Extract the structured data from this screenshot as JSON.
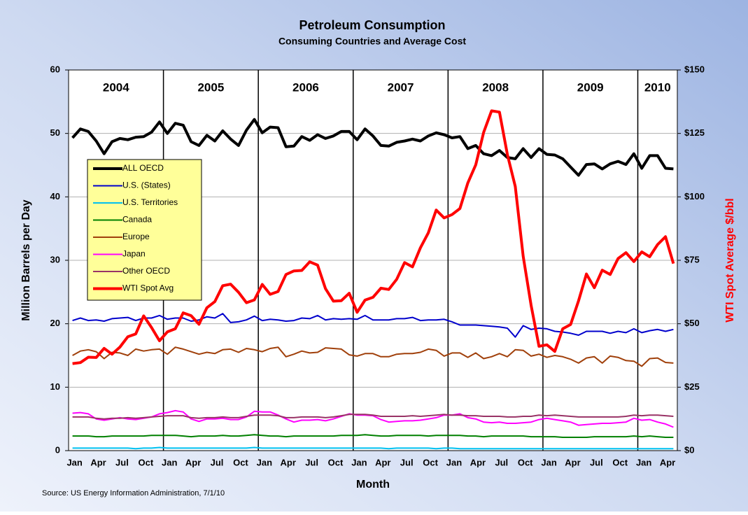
{
  "chart_data": {
    "type": "line",
    "title": "Petroleum Consumption",
    "subtitle": "Consuming Countries and Average Cost",
    "xlabel": "Month",
    "ylabel": "Million Barrels per Day",
    "y2label": "WTI Spot Average $/bbl",
    "source": "Source:  US Energy Information Administration, 7/1/10",
    "year_labels": [
      "2004",
      "2005",
      "2006",
      "2007",
      "2008",
      "2009",
      "2010"
    ],
    "categories": [
      "Jan",
      null,
      null,
      "Apr",
      null,
      null,
      "Jul",
      null,
      null,
      "Oct",
      null,
      null,
      "Jan",
      null,
      null,
      "Apr",
      null,
      null,
      "Jul",
      null,
      null,
      "Oct",
      null,
      null,
      "Jan",
      null,
      null,
      "Apr",
      null,
      null,
      "Jul",
      null,
      null,
      "Oct",
      null,
      null,
      "Jan",
      null,
      null,
      "Apr",
      null,
      null,
      "Jul",
      null,
      null,
      "Oct",
      null,
      null,
      "Jan",
      null,
      null,
      "Apr",
      null,
      null,
      "Jul",
      null,
      null,
      "Oct",
      null,
      null,
      "Jan",
      null,
      null,
      "Apr",
      null,
      null,
      "Jul",
      null,
      null,
      "Oct",
      null,
      null,
      "Jan",
      null,
      null,
      "Apr",
      null
    ],
    "ylim": [
      0,
      60
    ],
    "yticks": [
      0,
      10,
      20,
      30,
      40,
      50,
      60
    ],
    "y2lim": [
      0,
      150
    ],
    "y2ticks": [
      {
        "value": 0,
        "label": "$0"
      },
      {
        "value": 25,
        "label": "$25"
      },
      {
        "value": 50,
        "label": "$50"
      },
      {
        "value": 75,
        "label": "$75"
      },
      {
        "value": 100,
        "label": "$100"
      },
      {
        "value": 125,
        "label": "$125"
      },
      {
        "value": 150,
        "label": "$150"
      }
    ],
    "grid": true,
    "legend": "left",
    "series": [
      {
        "name": "ALL OECD",
        "color": "#000000",
        "values": [
          49.3,
          50.7,
          50.3,
          48.8,
          46.8,
          48.7,
          49.2,
          49.0,
          49.4,
          49.5,
          50.2,
          51.8,
          50.0,
          51.6,
          51.3,
          48.7,
          48.1,
          49.7,
          48.8,
          50.4,
          49.1,
          48.1,
          50.5,
          52.2,
          50.1,
          51.0,
          50.9,
          47.9,
          48.0,
          49.5,
          48.9,
          49.8,
          49.2,
          49.6,
          50.3,
          50.3,
          49.0,
          50.7,
          49.6,
          48.1,
          48.0,
          48.6,
          48.8,
          49.1,
          48.8,
          49.6,
          50.1,
          49.8,
          49.3,
          49.5,
          47.6,
          48.1,
          46.8,
          46.5,
          47.3,
          46.2,
          46.0,
          47.6,
          46.2,
          47.6,
          46.7,
          46.6,
          46.0,
          44.7,
          43.4,
          45.1,
          45.2,
          44.4,
          45.2,
          45.6,
          45.1,
          46.8,
          44.5,
          46.5,
          46.5,
          44.5,
          44.4
        ]
      },
      {
        "name": "U.S. (States)",
        "color": "#0000cc",
        "values": [
          20.5,
          20.9,
          20.5,
          20.6,
          20.4,
          20.8,
          20.9,
          21.0,
          20.5,
          20.9,
          20.9,
          21.3,
          20.7,
          20.9,
          20.9,
          20.4,
          20.6,
          21.1,
          20.9,
          21.6,
          20.2,
          20.3,
          20.6,
          21.2,
          20.5,
          20.7,
          20.6,
          20.4,
          20.5,
          20.9,
          20.8,
          21.3,
          20.6,
          20.8,
          20.7,
          20.8,
          20.7,
          21.3,
          20.6,
          20.6,
          20.6,
          20.8,
          20.8,
          21.0,
          20.5,
          20.6,
          20.6,
          20.7,
          20.3,
          19.8,
          19.8,
          19.8,
          19.7,
          19.6,
          19.5,
          19.3,
          17.9,
          19.7,
          19.1,
          19.3,
          19.2,
          18.8,
          18.7,
          18.5,
          18.2,
          18.8,
          18.8,
          18.8,
          18.5,
          18.8,
          18.6,
          19.2,
          18.6,
          18.9,
          19.1,
          18.8,
          19.1
        ]
      },
      {
        "name": "U.S. Territories",
        "color": "#00c0f0",
        "values": [
          0.4,
          0.4,
          0.4,
          0.4,
          0.4,
          0.4,
          0.4,
          0.4,
          0.3,
          0.4,
          0.4,
          0.5,
          0.4,
          0.4,
          0.4,
          0.4,
          0.4,
          0.4,
          0.4,
          0.4,
          0.4,
          0.4,
          0.4,
          0.5,
          0.4,
          0.4,
          0.4,
          0.4,
          0.4,
          0.4,
          0.4,
          0.4,
          0.4,
          0.4,
          0.4,
          0.4,
          0.4,
          0.4,
          0.4,
          0.4,
          0.3,
          0.4,
          0.4,
          0.4,
          0.4,
          0.4,
          0.3,
          0.4,
          0.4,
          0.3,
          0.3,
          0.3,
          0.3,
          0.3,
          0.3,
          0.3,
          0.3,
          0.3,
          0.3,
          0.3,
          0.3,
          0.3,
          0.3,
          0.3,
          0.3,
          0.3,
          0.3,
          0.3,
          0.3,
          0.3,
          0.3,
          0.3,
          0.3,
          0.3,
          0.3,
          0.3,
          0.3
        ]
      },
      {
        "name": "Canada",
        "color": "#008000",
        "values": [
          2.3,
          2.3,
          2.3,
          2.2,
          2.2,
          2.3,
          2.3,
          2.3,
          2.3,
          2.3,
          2.4,
          2.4,
          2.4,
          2.4,
          2.3,
          2.2,
          2.3,
          2.3,
          2.3,
          2.4,
          2.3,
          2.3,
          2.4,
          2.5,
          2.4,
          2.3,
          2.3,
          2.2,
          2.3,
          2.3,
          2.3,
          2.3,
          2.3,
          2.3,
          2.4,
          2.4,
          2.4,
          2.5,
          2.4,
          2.3,
          2.3,
          2.4,
          2.4,
          2.4,
          2.4,
          2.3,
          2.4,
          2.4,
          2.4,
          2.4,
          2.3,
          2.3,
          2.2,
          2.3,
          2.3,
          2.3,
          2.3,
          2.3,
          2.2,
          2.2,
          2.2,
          2.2,
          2.1,
          2.1,
          2.1,
          2.1,
          2.2,
          2.2,
          2.2,
          2.2,
          2.2,
          2.3,
          2.2,
          2.3,
          2.2,
          2.1,
          2.1
        ]
      },
      {
        "name": "Europe",
        "color": "#a0400b",
        "values": [
          15.0,
          15.7,
          15.9,
          15.6,
          14.5,
          15.5,
          15.4,
          15.0,
          16.0,
          15.7,
          15.9,
          16.0,
          15.2,
          16.3,
          16.0,
          15.6,
          15.2,
          15.5,
          15.3,
          15.9,
          16.0,
          15.5,
          16.1,
          15.9,
          15.6,
          16.1,
          16.3,
          14.8,
          15.2,
          15.7,
          15.4,
          15.5,
          16.2,
          16.1,
          16.0,
          15.1,
          14.9,
          15.3,
          15.3,
          14.8,
          14.8,
          15.2,
          15.3,
          15.3,
          15.5,
          16.0,
          15.8,
          14.9,
          15.4,
          15.4,
          14.7,
          15.4,
          14.5,
          14.8,
          15.3,
          14.8,
          15.9,
          15.8,
          14.9,
          15.2,
          14.7,
          15.0,
          14.8,
          14.4,
          13.8,
          14.6,
          14.8,
          13.8,
          14.9,
          14.7,
          14.2,
          14.1,
          13.3,
          14.5,
          14.6,
          13.9,
          13.8
        ]
      },
      {
        "name": "Japan",
        "color": "#ff00ff",
        "values": [
          5.9,
          6.0,
          5.8,
          5.0,
          4.8,
          5.0,
          5.2,
          5.0,
          4.9,
          5.1,
          5.3,
          5.8,
          6.0,
          6.3,
          6.1,
          5.0,
          4.6,
          5.0,
          5.0,
          5.1,
          4.9,
          4.9,
          5.3,
          6.2,
          6.1,
          6.1,
          5.6,
          5.0,
          4.5,
          4.8,
          4.8,
          4.9,
          4.7,
          5.0,
          5.4,
          5.8,
          5.6,
          5.6,
          5.5,
          4.9,
          4.5,
          4.6,
          4.7,
          4.7,
          4.8,
          5.0,
          5.2,
          5.6,
          5.6,
          5.8,
          5.2,
          5.0,
          4.5,
          4.4,
          4.5,
          4.3,
          4.3,
          4.4,
          4.5,
          4.9,
          5.1,
          4.9,
          4.7,
          4.5,
          4.0,
          4.1,
          4.2,
          4.3,
          4.3,
          4.4,
          4.5,
          5.1,
          4.8,
          4.9,
          4.5,
          4.2,
          3.7
        ]
      },
      {
        "name": "Other OECD",
        "color": "#993366",
        "values": [
          5.3,
          5.3,
          5.3,
          5.1,
          5.0,
          5.1,
          5.1,
          5.2,
          5.1,
          5.2,
          5.3,
          5.4,
          5.5,
          5.5,
          5.5,
          5.2,
          5.1,
          5.2,
          5.2,
          5.3,
          5.2,
          5.2,
          5.4,
          5.6,
          5.6,
          5.6,
          5.5,
          5.2,
          5.2,
          5.3,
          5.3,
          5.3,
          5.2,
          5.3,
          5.5,
          5.7,
          5.7,
          5.7,
          5.6,
          5.4,
          5.4,
          5.4,
          5.4,
          5.5,
          5.4,
          5.5,
          5.6,
          5.7,
          5.6,
          5.6,
          5.5,
          5.5,
          5.4,
          5.4,
          5.4,
          5.3,
          5.3,
          5.4,
          5.4,
          5.6,
          5.5,
          5.6,
          5.5,
          5.4,
          5.3,
          5.3,
          5.3,
          5.3,
          5.3,
          5.3,
          5.4,
          5.6,
          5.5,
          5.6,
          5.6,
          5.5,
          5.4
        ]
      },
      {
        "name": "WTI Spot Avg",
        "color": "#ff0000",
        "axis": "y2",
        "values": [
          34.3,
          34.7,
          36.8,
          36.7,
          40.3,
          38.0,
          40.8,
          44.9,
          46.0,
          53.1,
          48.5,
          43.3,
          46.8,
          48.0,
          54.3,
          53.2,
          49.8,
          56.3,
          58.7,
          65.0,
          65.6,
          62.4,
          58.3,
          59.4,
          65.5,
          61.6,
          62.7,
          69.4,
          70.8,
          71.0,
          74.4,
          73.1,
          63.8,
          58.9,
          59.1,
          62.0,
          54.5,
          59.3,
          60.4,
          64.0,
          63.5,
          67.5,
          74.1,
          72.4,
          79.9,
          85.8,
          94.8,
          91.7,
          93.0,
          95.4,
          105.5,
          112.6,
          125.4,
          133.9,
          133.4,
          116.7,
          104.1,
          76.6,
          57.3,
          41.1,
          41.7,
          39.1,
          48.0,
          49.7,
          59.0,
          69.6,
          64.2,
          71.1,
          69.4,
          75.7,
          78.0,
          74.5,
          78.3,
          76.4,
          81.2,
          84.3,
          73.7
        ]
      }
    ]
  }
}
